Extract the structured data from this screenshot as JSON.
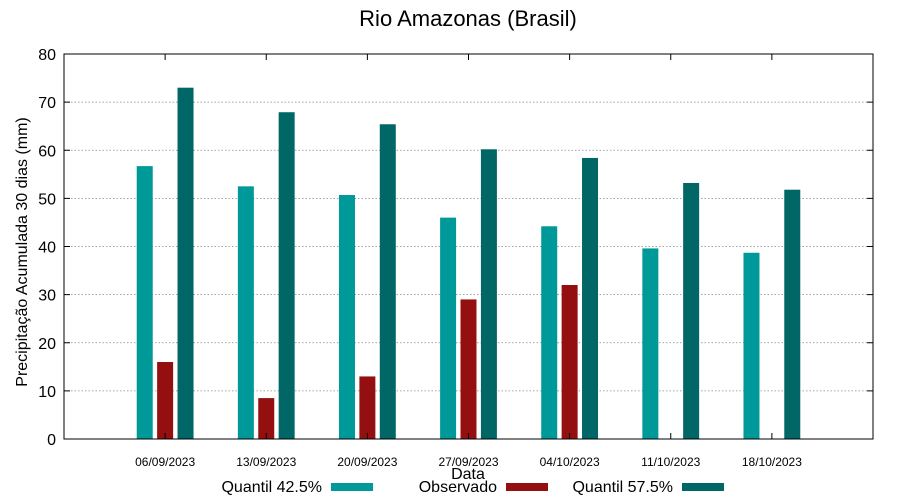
{
  "chart_data": {
    "type": "bar",
    "title": "Rio Amazonas (Brasil)",
    "xlabel": "Data",
    "ylabel": "Precipitação Acumulada 30 dias (mm)",
    "ylim": [
      0,
      80
    ],
    "yticks": [
      0,
      10,
      20,
      30,
      40,
      50,
      60,
      70,
      80
    ],
    "grid": true,
    "legend_position": "bottom",
    "categories": [
      "06/09/2023",
      "13/09/2023",
      "20/09/2023",
      "27/09/2023",
      "04/10/2023",
      "11/10/2023",
      "18/10/2023"
    ],
    "series": [
      {
        "name": "Quantil 42.5%",
        "color": "#009999",
        "values": [
          56.7,
          52.5,
          50.7,
          46.0,
          44.2,
          39.6,
          38.7
        ]
      },
      {
        "name": "Observado",
        "color": "#941010",
        "values": [
          16.0,
          8.5,
          13.0,
          29.0,
          32.0,
          null,
          null
        ]
      },
      {
        "name": "Quantil 57.5%",
        "color": "#006666",
        "values": [
          73.0,
          67.9,
          65.4,
          60.2,
          58.4,
          53.2,
          51.8
        ]
      }
    ]
  }
}
